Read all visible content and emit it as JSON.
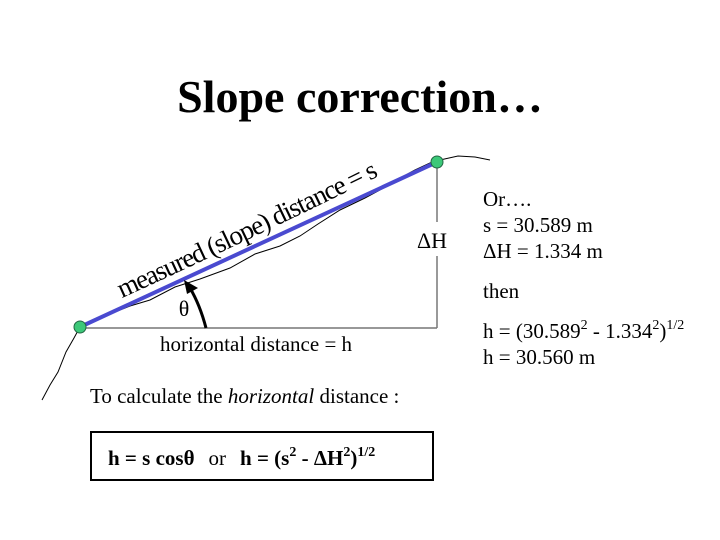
{
  "title": "Slope correction…",
  "diagram": {
    "slope_label": "measured (slope) distance = s",
    "delta_h": "ΔH",
    "theta": "θ",
    "horizontal_label": "horizontal distance = h"
  },
  "instruction": [
    "To calculate the ",
    "horizontal",
    " distance :"
  ],
  "formula": [
    "h = s cos",
    "θ",
    "or",
    "h = (s",
    "2",
    " - ",
    "ΔH",
    "2",
    ")",
    "1/2"
  ],
  "example": {
    "intro": "Or….",
    "s": "s = 30.589 m",
    "dh": "ΔH = 1.334 m",
    "then": "then",
    "h_calc": [
      "h = (30.589",
      "2",
      " - 1.334",
      "2",
      ")",
      "1/2"
    ],
    "h_result": "h = 30.560 m"
  }
}
